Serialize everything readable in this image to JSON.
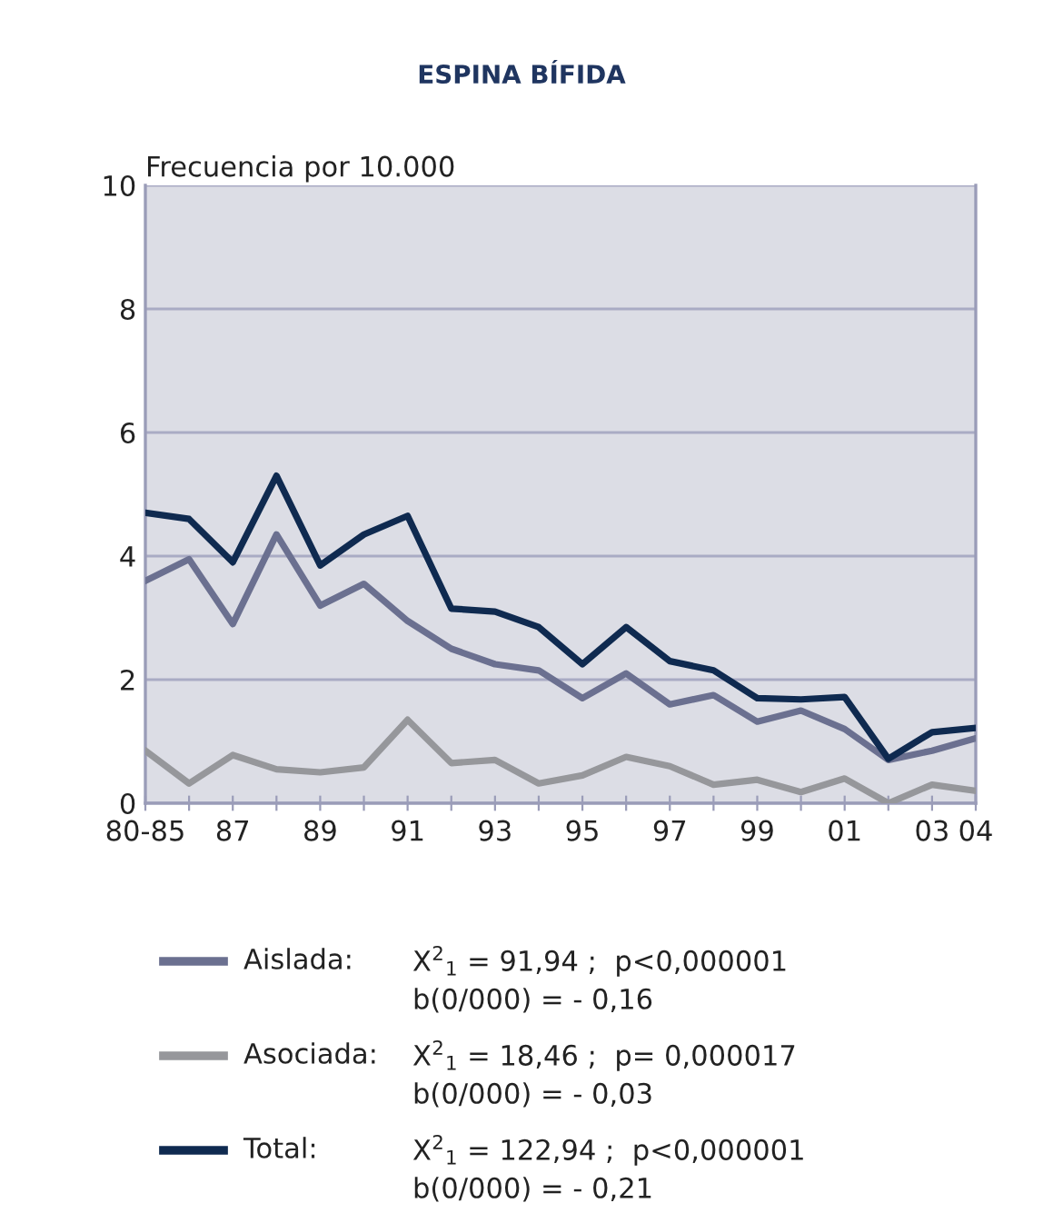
{
  "chart_data": {
    "type": "line",
    "title": "ESPINA BÍFIDA",
    "ylabel": "Frecuencia por 10.000",
    "categories": [
      "80-85",
      null,
      "87",
      null,
      "89",
      null,
      "91",
      null,
      "93",
      null,
      "95",
      null,
      "97",
      null,
      "99",
      null,
      "01",
      null,
      "03",
      "04"
    ],
    "series": [
      {
        "name": "Aislada:",
        "color": "#6b7090",
        "values": [
          3.6,
          3.95,
          2.9,
          4.35,
          3.2,
          3.55,
          2.95,
          2.5,
          2.25,
          2.15,
          1.7,
          2.1,
          1.6,
          1.75,
          1.32,
          1.5,
          1.2,
          0.7,
          0.85,
          1.05
        ]
      },
      {
        "name": "Asociada:",
        "color": "#96979b",
        "values": [
          0.85,
          0.32,
          0.78,
          0.55,
          0.5,
          0.58,
          1.35,
          0.65,
          0.7,
          0.32,
          0.45,
          0.75,
          0.6,
          0.3,
          0.38,
          0.18,
          0.4,
          0.0,
          0.3,
          0.2
        ]
      },
      {
        "name": "Total:",
        "color": "#0f2a50",
        "values": [
          4.7,
          4.6,
          3.9,
          5.3,
          3.85,
          4.35,
          4.65,
          3.15,
          3.1,
          2.85,
          2.25,
          2.85,
          2.3,
          2.15,
          1.7,
          1.68,
          1.72,
          0.72,
          1.15,
          1.22
        ]
      }
    ],
    "annotations": [
      "X$^{2}$$_{1}$ = 91,94 ;  p<0,000001",
      "b(0/000) = - 0,16",
      "X$^{2}$$_{1}$ = 18,46 ;  p= 0,000017",
      "b(0/000) = - 0,03",
      "X$^{2}$$_{1}$ = 122,94 ;  p<0,000001",
      "b(0/000) = - 0,21"
    ],
    "ylim": [
      0,
      10
    ],
    "yticks": [
      0,
      2,
      4,
      6,
      8,
      10
    ],
    "grid": "y",
    "legend": "bottom",
    "marker": "none",
    "line_style": "solid"
  }
}
